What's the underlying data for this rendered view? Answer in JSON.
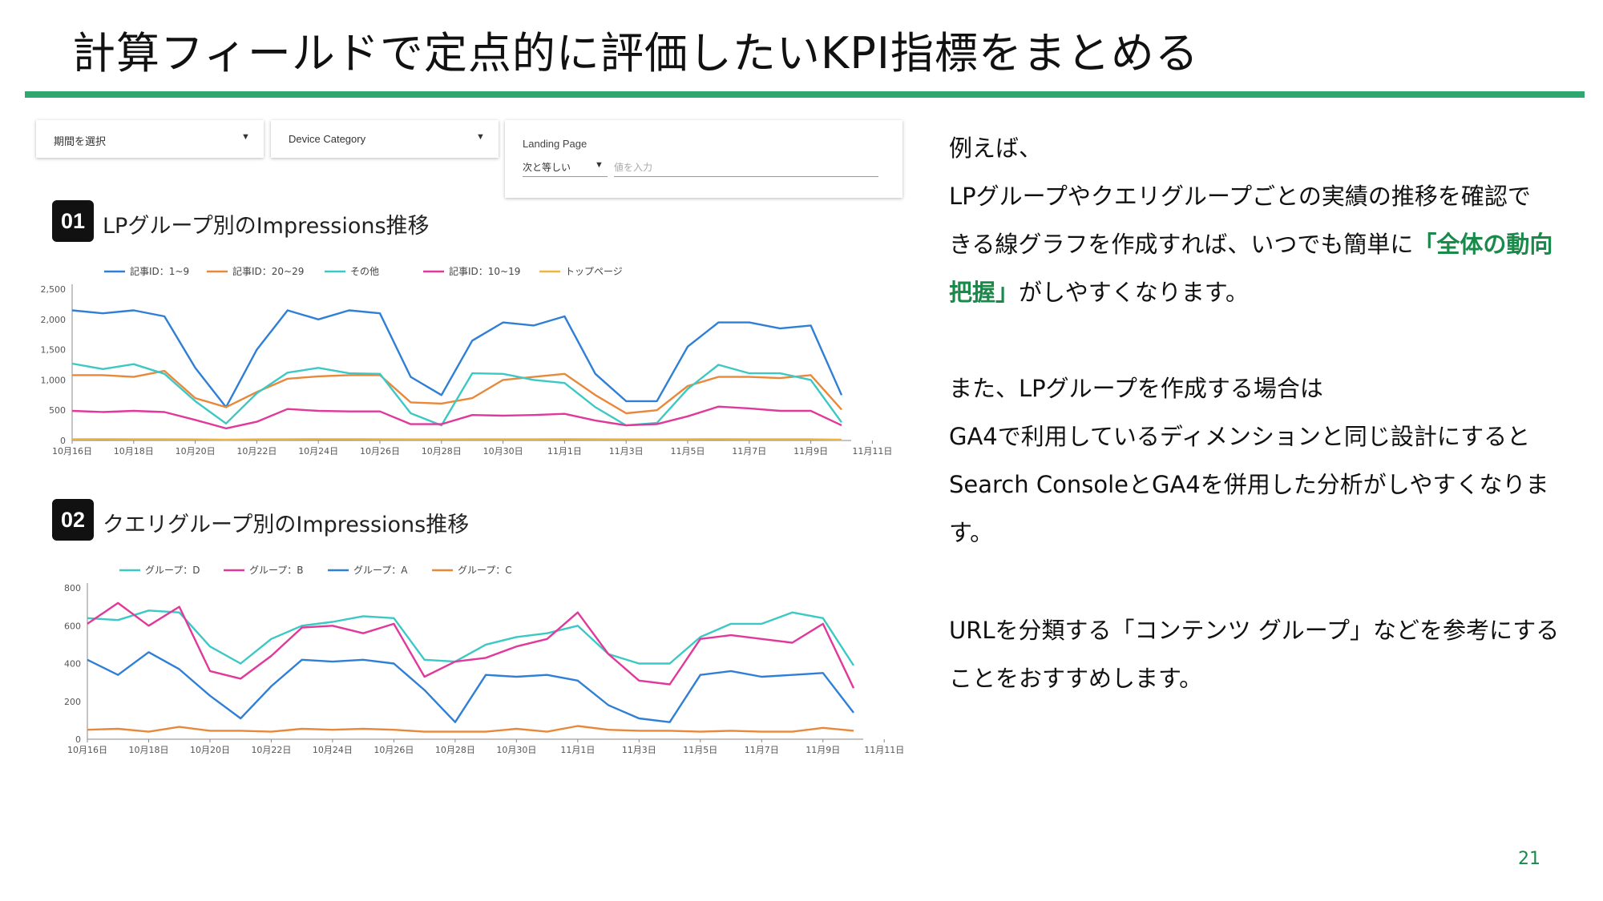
{
  "title": "計算フィールドで定点的に評価したいKPI指標をまとめる",
  "filters": {
    "period": {
      "label": "期間を選択"
    },
    "device": {
      "label": "Device Category"
    },
    "landing_page": {
      "label": "Landing Page",
      "operator": "次と等しい",
      "placeholder": "値を入力"
    }
  },
  "colors": {
    "accent": "#2ea86e",
    "highlight": "#1a8a4a",
    "blue": "#2f7fd6",
    "orange": "#e8883a",
    "teal": "#3cc8c4",
    "pink": "#e0389b",
    "yellow": "#f2b43b"
  },
  "chart_data": [
    {
      "type": "line",
      "badge": "01",
      "title": "LPグループ別のImpressions推移",
      "ylim": [
        0,
        2500
      ],
      "yticks": [
        "0",
        "500",
        "1,000",
        "1,500",
        "2,000",
        "2,500"
      ],
      "yticks_values": [
        0,
        500,
        1000,
        1500,
        2000,
        2500
      ],
      "xtick_labels": [
        "10月16日",
        "10月18日",
        "10月20日",
        "10月22日",
        "10月24日",
        "10月26日",
        "10月28日",
        "10月30日",
        "11月1日",
        "11月3日",
        "11月5日",
        "11月7日",
        "11月9日",
        "11月11日"
      ],
      "legend_position": "top",
      "series": [
        {
          "name": "記事ID：1~9",
          "color": "#2f7fd6",
          "values": [
            2150,
            2100,
            2150,
            2050,
            1200,
            550,
            1500,
            2150,
            2000,
            2150,
            2100,
            1050,
            750,
            1650,
            1950,
            1900,
            2050,
            1100,
            650,
            650,
            1550,
            1950,
            1950,
            1850,
            1900,
            750
          ]
        },
        {
          "name": "記事ID：20~29",
          "color": "#e8883a",
          "values": [
            1080,
            1080,
            1050,
            1150,
            700,
            550,
            800,
            1020,
            1060,
            1080,
            1080,
            630,
            610,
            700,
            1000,
            1050,
            1100,
            750,
            450,
            500,
            900,
            1050,
            1050,
            1030,
            1080,
            510
          ]
        },
        {
          "name": "その他",
          "color": "#3cc8c4",
          "values": [
            1270,
            1180,
            1260,
            1100,
            650,
            280,
            780,
            1120,
            1200,
            1110,
            1100,
            450,
            250,
            1110,
            1100,
            1000,
            950,
            550,
            250,
            290,
            850,
            1250,
            1110,
            1110,
            1000,
            300
          ]
        },
        {
          "name": "記事ID：10~19",
          "color": "#e0389b",
          "values": [
            490,
            470,
            490,
            470,
            340,
            200,
            310,
            520,
            490,
            480,
            480,
            270,
            270,
            420,
            410,
            420,
            440,
            330,
            250,
            270,
            400,
            560,
            530,
            490,
            490,
            250
          ]
        },
        {
          "name": "トップページ",
          "color": "#f2b43b",
          "values": [
            20,
            22,
            20,
            20,
            18,
            15,
            18,
            20,
            22,
            22,
            20,
            18,
            18,
            20,
            20,
            20,
            22,
            20,
            18,
            18,
            20,
            22,
            20,
            20,
            20,
            15
          ]
        }
      ]
    },
    {
      "type": "line",
      "badge": "02",
      "title": "クエリグループ別のImpressions推移",
      "ylim": [
        0,
        800
      ],
      "yticks": [
        "0",
        "200",
        "400",
        "600",
        "800"
      ],
      "yticks_values": [
        0,
        200,
        400,
        600,
        800
      ],
      "xtick_labels": [
        "10月16日",
        "10月18日",
        "10月20日",
        "10月22日",
        "10月24日",
        "10月26日",
        "10月28日",
        "10月30日",
        "11月1日",
        "11月3日",
        "11月5日",
        "11月7日",
        "11月9日",
        "11月11日"
      ],
      "legend_position": "top",
      "series": [
        {
          "name": "グループ：D",
          "color": "#3cc8c4",
          "values": [
            640,
            630,
            680,
            670,
            490,
            400,
            530,
            600,
            620,
            650,
            640,
            420,
            410,
            500,
            540,
            560,
            600,
            450,
            400,
            400,
            540,
            610,
            610,
            670,
            640,
            390
          ]
        },
        {
          "name": "グループ：B",
          "color": "#e0389b",
          "values": [
            610,
            720,
            600,
            700,
            360,
            320,
            440,
            590,
            600,
            560,
            610,
            330,
            410,
            430,
            490,
            530,
            670,
            450,
            310,
            290,
            530,
            550,
            530,
            510,
            610,
            270
          ]
        },
        {
          "name": "グループ：A",
          "color": "#2f7fd6",
          "values": [
            420,
            340,
            460,
            370,
            230,
            110,
            280,
            420,
            410,
            420,
            400,
            260,
            90,
            340,
            330,
            340,
            310,
            180,
            110,
            90,
            340,
            360,
            330,
            340,
            350,
            140
          ]
        },
        {
          "name": "グループ：C",
          "color": "#e8883a",
          "values": [
            50,
            55,
            40,
            65,
            45,
            45,
            40,
            55,
            50,
            55,
            50,
            40,
            40,
            40,
            55,
            40,
            70,
            50,
            45,
            45,
            40,
            45,
            40,
            40,
            60,
            45
          ]
        }
      ]
    }
  ],
  "body": {
    "p1_line1": "例えば、",
    "p1_line2": "LPグループやクエリグループごとの実績の推移を確認で",
    "p1_line3_a": "きる線グラフを作成すれば、いつでも簡単に",
    "p1_line3_b": "「全体の動向",
    "p1_line4_a": "把握」",
    "p1_line4_b": "がしやすくなります。",
    "p2_line1": "また、LPグループを作成する場合は",
    "p2_line2": "GA4で利用しているディメンションと同じ設計にすると",
    "p2_line3": "Search ConsoleとGA4を併用した分析がしやすくなりま",
    "p2_line4": "す。",
    "p3_line1": "URLを分類する「コンテンツ グループ」などを参考にする",
    "p3_line2": "ことをおすすめします。"
  },
  "page_number": "21"
}
